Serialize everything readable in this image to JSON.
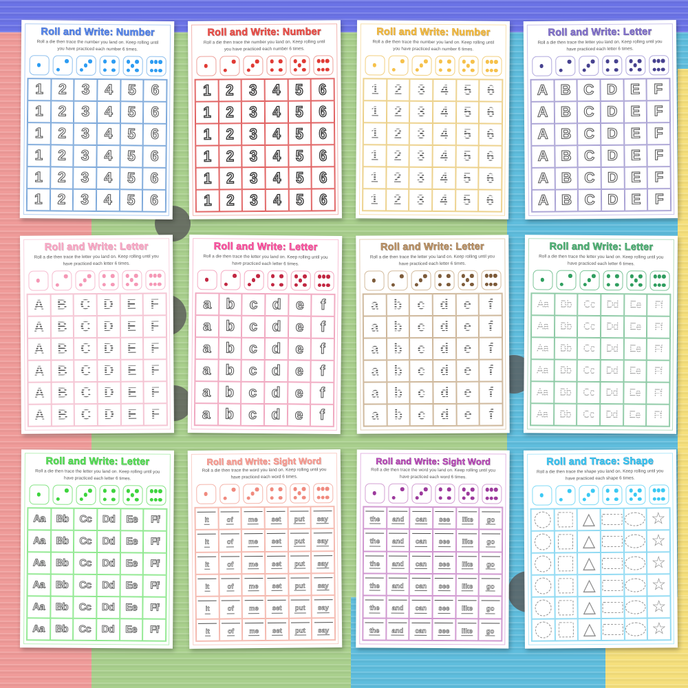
{
  "background": {
    "top_band_color": "#6b73e6",
    "left_strip_color": "#ef9b99",
    "green_color": "#a9cf8d",
    "blue_color": "#5fbddd",
    "yellow_color": "#f5df7c",
    "decor_circle_color": "#595959"
  },
  "dice_faces": [
    1,
    2,
    3,
    4,
    5,
    6
  ],
  "worksheets": [
    {
      "id": "number-blue",
      "title": "Roll and Write: Number",
      "subtitle_line1": "Roll a die then trace the number you land on. Keep rolling until",
      "subtitle_line2": "you have practiced each number 6 times.",
      "style": "bubble",
      "cells": [
        "1",
        "2",
        "3",
        "4",
        "5",
        "6"
      ],
      "rows": 6,
      "theme": {
        "title": "#5c8ef2",
        "toutline": "#3a62c4",
        "border": "#b0cdf2",
        "diceb": "#8fc0ee",
        "dot": "#2d9cf2",
        "grid": "#7ca8da"
      }
    },
    {
      "id": "number-red",
      "title": "Roll and Write: Number",
      "subtitle_line1": "Roll a die then trace the number you land on. Keep rolling until",
      "subtitle_line2": "you have practiced each number 6 times.",
      "style": "bubble-bold",
      "cells": [
        "1",
        "2",
        "3",
        "4",
        "5",
        "6"
      ],
      "rows": 6,
      "theme": {
        "title": "#f25c55",
        "toutline": "#c62f2a",
        "border": "#f2b4b0",
        "diceb": "#eda09a",
        "dot": "#e03a34",
        "grid": "#e06060"
      }
    },
    {
      "id": "number-yellow",
      "title": "Roll and Write: Number",
      "subtitle_line1": "Roll a die then trace the number you land on. Keep rolling until",
      "subtitle_line2": "you have practiced each number 6 times.",
      "style": "dash",
      "cells": [
        "1",
        "2",
        "3",
        "4",
        "5",
        "6"
      ],
      "rows": 6,
      "theme": {
        "title": "#f6c14b",
        "toutline": "#d89b22",
        "border": "#f6dfae",
        "diceb": "#f2cf7e",
        "dot": "#f6c14b",
        "grid": "#ecd089"
      }
    },
    {
      "id": "letter-purple-uppercase",
      "title": "Roll and Write: Letter",
      "subtitle_line1": "Roll a die then trace the letter you land on. Keep rolling until you",
      "subtitle_line2": "have practiced each letter 6 times.",
      "style": "bubble",
      "cells": [
        "A",
        "B",
        "C",
        "D",
        "E",
        "F"
      ],
      "rows": 6,
      "theme": {
        "title": "#8d7cd6",
        "toutline": "#5a4aa0",
        "border": "#c9c2ea",
        "diceb": "#b0a8dd",
        "dot": "#46418f",
        "grid": "#a9a2d4"
      }
    },
    {
      "id": "letter-pink-uppercase",
      "title": "Roll and Write: Letter",
      "subtitle_line1": "Roll a die then trace the letter you land on. Keep rolling until you",
      "subtitle_line2": "have practiced each letter 6 times.",
      "style": "dash",
      "cells": [
        "A",
        "B",
        "C",
        "D",
        "E",
        "F"
      ],
      "rows": 6,
      "theme": {
        "title": "#f9b0ca",
        "toutline": "#ef8bb0",
        "border": "#f9d3e0",
        "diceb": "#f6bcd0",
        "dot": "#f598b6",
        "grid": "#f4c3d2"
      }
    },
    {
      "id": "letter-hotpink-lowercase",
      "title": "Roll and Write: Letter",
      "subtitle_line1": "Roll a die then trace the letter you land on. Keep rolling until you",
      "subtitle_line2": "have practiced each letter 6 times.",
      "style": "bubble",
      "cells": [
        "a",
        "b",
        "c",
        "d",
        "e",
        "f"
      ],
      "rows": 6,
      "theme": {
        "title": "#ff5ca8",
        "toutline": "#e0347f",
        "border": "#f8c0d4",
        "diceb": "#f4aac2",
        "dot": "#c22742",
        "grid": "#f0a8c0"
      }
    },
    {
      "id": "letter-brown-lowercase",
      "title": "Roll and Write: Letter",
      "subtitle_line1": "Roll a die then trace the letter you land on. Keep rolling until you",
      "subtitle_line2": "have practiced each letter 6 times.",
      "style": "dash",
      "cells": [
        "a",
        "b",
        "c",
        "d",
        "e",
        "f"
      ],
      "rows": 6,
      "theme": {
        "title": "#c49a6c",
        "toutline": "#8f6b44",
        "border": "#e0cdb4",
        "diceb": "#d3bb9d",
        "dot": "#7d5b3a",
        "grid": "#cdb699"
      }
    },
    {
      "id": "letter-green-pairs",
      "title": "Roll and Write: Letter",
      "subtitle_line1": "Roll a die then trace the letter you land on. Keep rolling until you",
      "subtitle_line2": "have practiced each letter 6 times.",
      "style": "trace",
      "cells": [
        "Aa",
        "Bb",
        "Cc",
        "Dd",
        "Ee",
        "Ff"
      ],
      "rows": 6,
      "theme": {
        "title": "#58b97c",
        "toutline": "#2f8b55",
        "border": "#b4dcc2",
        "diceb": "#7cc498",
        "dot": "#2f9e5f",
        "grid": "#8cc9a4"
      }
    },
    {
      "id": "letter-brightgreen-pairs",
      "title": "Roll and Write: Letter",
      "subtitle_line1": "Roll a die then trace the letter you land on. Keep rolling until you",
      "subtitle_line2": "have practiced each letter 6 times.",
      "style": "bubble-pair",
      "cells": [
        "Aa",
        "Bb",
        "Cc",
        "Dd",
        "Ee",
        "Ff"
      ],
      "rows": 6,
      "theme": {
        "title": "#63e063",
        "toutline": "#2fc22f",
        "border": "#b8f0b8",
        "diceb": "#86e486",
        "dot": "#3ed43e",
        "grid": "#8fe88f"
      }
    },
    {
      "id": "sightword-salmon",
      "title": "Roll and Write: Sight Word",
      "subtitle_line1": "Roll a die then trace the word you land on. Keep rolling until you",
      "subtitle_line2": "have practiced each word 6 times.",
      "style": "word",
      "cells": [
        "it",
        "of",
        "me",
        "set",
        "put",
        "say"
      ],
      "rows": 6,
      "theme": {
        "title": "#f7a79e",
        "toutline": "#ee8277",
        "border": "#f9cfc8",
        "diceb": "#f4b4aa",
        "dot": "#f08a7e",
        "grid": "#f4b8ae"
      }
    },
    {
      "id": "sightword-plum",
      "title": "Roll and Write: Sight Word",
      "subtitle_line1": "Roll a die then trace the word you land on. Keep rolling until you",
      "subtitle_line2": "have practiced each word 6 times.",
      "style": "word",
      "cells": [
        "the",
        "and",
        "can",
        "see",
        "like",
        "go"
      ],
      "rows": 6,
      "theme": {
        "title": "#c455c4",
        "toutline": "#933093",
        "border": "#e2b6e2",
        "diceb": "#d3a0d3",
        "dot": "#9c3a9c",
        "grid": "#cf96cf"
      }
    },
    {
      "id": "shape-cyan",
      "title": "Roll and Trace: Shape",
      "subtitle_line1": "Roll a die then trace the shape you land on. Keep rolling until you",
      "subtitle_line2": "have practiced each shape 6 times.",
      "style": "shapes",
      "cells": [
        "circle",
        "square",
        "triangle",
        "rectangle",
        "ellipse",
        "star"
      ],
      "rows": 6,
      "theme": {
        "title": "#46cdf6",
        "toutline": "#199fd4",
        "border": "#b0e8fa",
        "diceb": "#7fdaf6",
        "dot": "#3bc9f4",
        "grid": "#8ed9f2"
      }
    }
  ]
}
